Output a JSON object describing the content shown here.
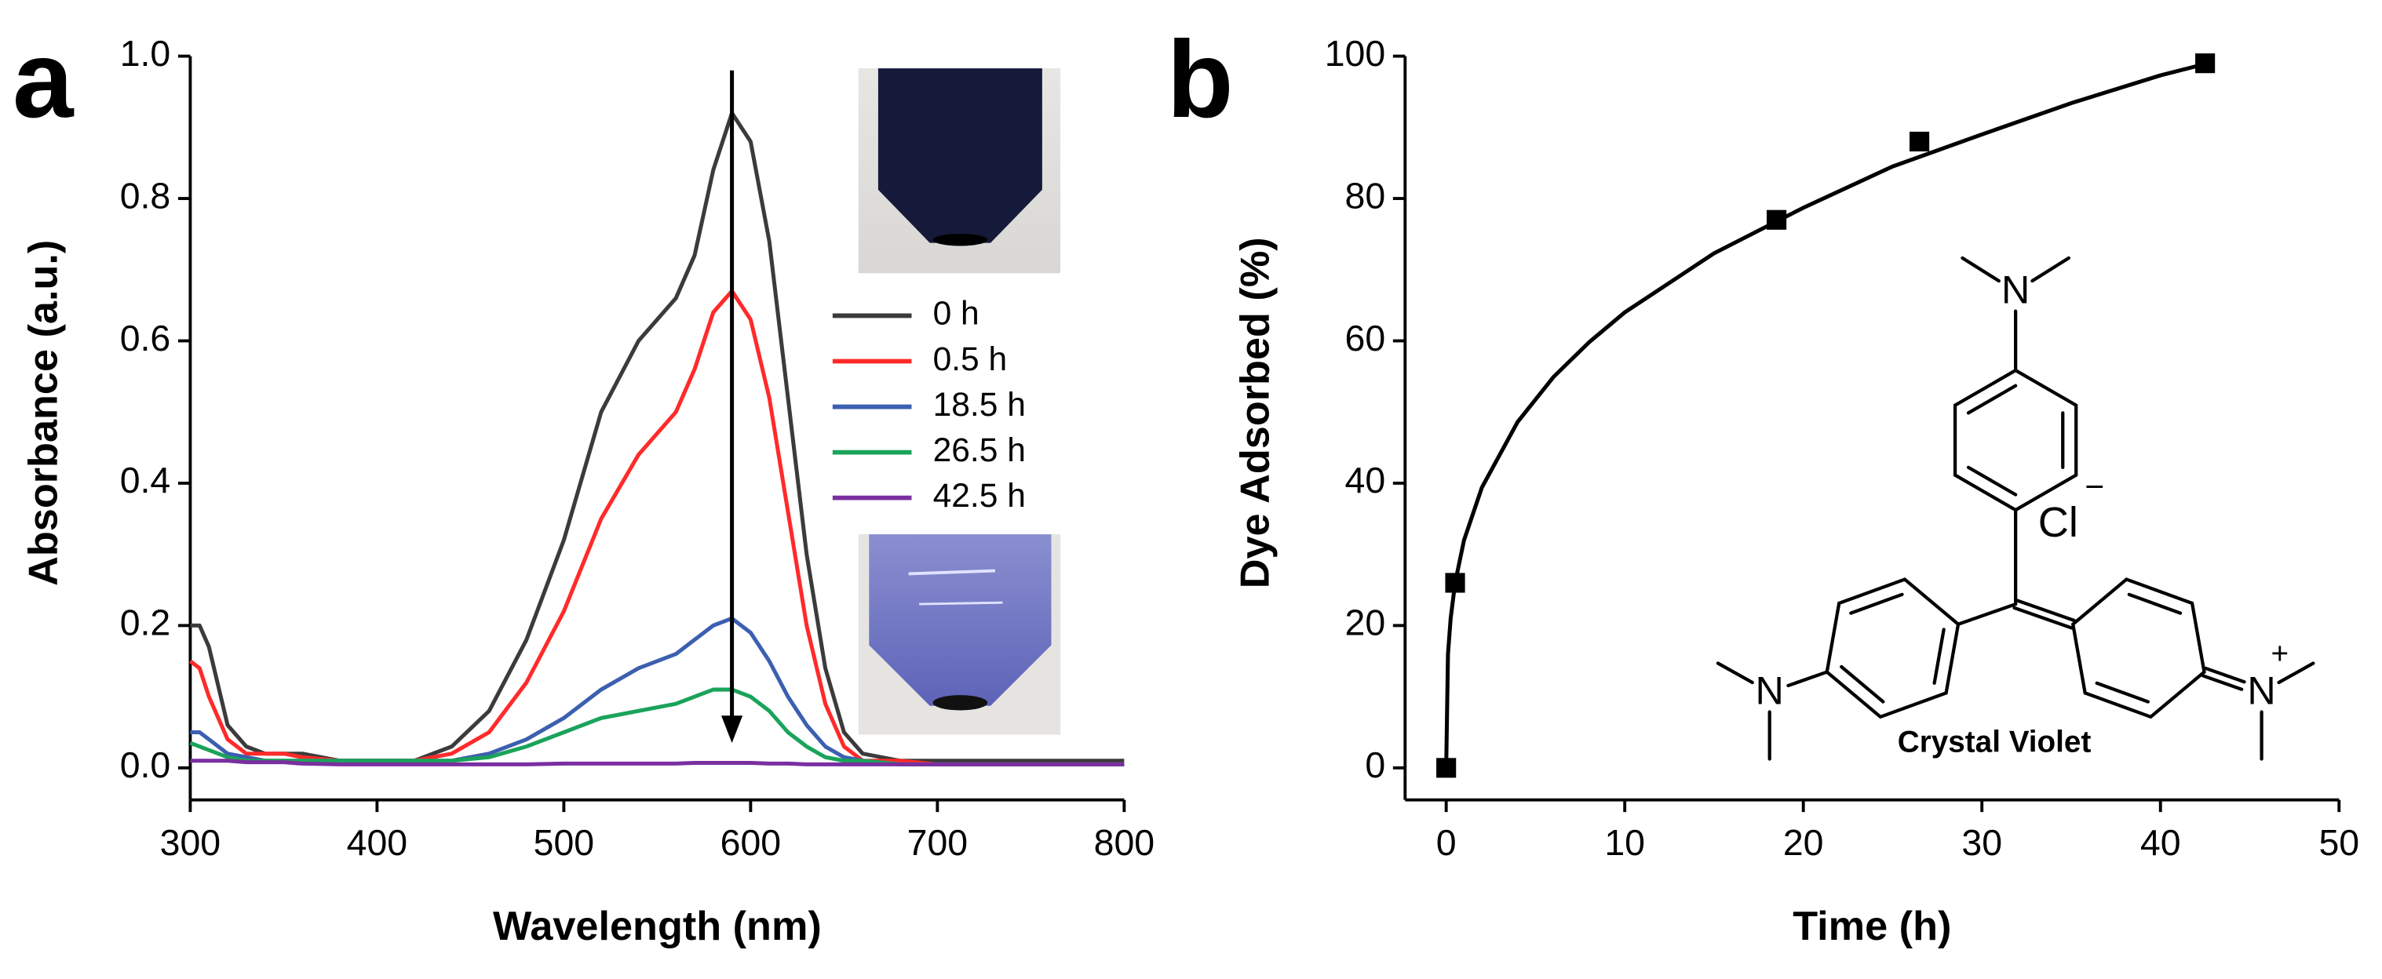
{
  "chart_data": [
    {
      "type": "line",
      "panel_label": "a",
      "xlabel": "Wavelength (nm)",
      "ylabel": "Absorbance (a.u.)",
      "xlim": [
        300,
        800
      ],
      "xticks": [
        300,
        400,
        500,
        600,
        700,
        800
      ],
      "ylim": [
        -0.045,
        1.0
      ],
      "yticks": [
        {
          "value": 0,
          "label": "0.0"
        },
        0.2,
        0.4,
        0.6,
        0.8,
        {
          "value": 1,
          "label": "1.0"
        }
      ],
      "legend": "right",
      "x": [
        300,
        305,
        310,
        320,
        330,
        340,
        350,
        360,
        380,
        400,
        420,
        440,
        460,
        480,
        500,
        520,
        540,
        560,
        570,
        580,
        590,
        600,
        610,
        620,
        630,
        640,
        650,
        660,
        680,
        700,
        750,
        800
      ],
      "series": [
        {
          "name": "0 h",
          "color": "#3b3b3b",
          "values": [
            0.2,
            0.2,
            0.17,
            0.06,
            0.03,
            0.02,
            0.02,
            0.02,
            0.01,
            0.01,
            0.01,
            0.03,
            0.08,
            0.18,
            0.32,
            0.5,
            0.6,
            0.66,
            0.72,
            0.84,
            0.92,
            0.88,
            0.74,
            0.52,
            0.3,
            0.14,
            0.05,
            0.02,
            0.01,
            0.01,
            0.01,
            0.01
          ]
        },
        {
          "name": "0.5 h",
          "color": "#ff2a2a",
          "values": [
            0.15,
            0.14,
            0.1,
            0.04,
            0.02,
            0.02,
            0.02,
            0.015,
            0.01,
            0.01,
            0.01,
            0.02,
            0.05,
            0.12,
            0.22,
            0.35,
            0.44,
            0.5,
            0.56,
            0.64,
            0.67,
            0.63,
            0.52,
            0.36,
            0.2,
            0.09,
            0.03,
            0.01,
            0.01,
            0.005,
            0.005,
            0.005
          ]
        },
        {
          "name": "18.5 h",
          "color": "#3c5fb0",
          "values": [
            0.05,
            0.05,
            0.04,
            0.02,
            0.015,
            0.01,
            0.01,
            0.01,
            0.01,
            0.01,
            0.01,
            0.01,
            0.02,
            0.04,
            0.07,
            0.11,
            0.14,
            0.16,
            0.18,
            0.2,
            0.21,
            0.19,
            0.15,
            0.1,
            0.06,
            0.03,
            0.015,
            0.01,
            0.005,
            0.005,
            0.005,
            0.005
          ]
        },
        {
          "name": "26.5 h",
          "color": "#1aa35a",
          "values": [
            0.035,
            0.03,
            0.025,
            0.015,
            0.01,
            0.01,
            0.01,
            0.01,
            0.01,
            0.01,
            0.01,
            0.01,
            0.015,
            0.03,
            0.05,
            0.07,
            0.08,
            0.09,
            0.1,
            0.11,
            0.11,
            0.1,
            0.08,
            0.05,
            0.03,
            0.015,
            0.01,
            0.01,
            0.005,
            0.005,
            0.005,
            0.005
          ]
        },
        {
          "name": "42.5 h",
          "color": "#7a2fa0",
          "values": [
            0.01,
            0.01,
            0.01,
            0.01,
            0.008,
            0.008,
            0.008,
            0.006,
            0.005,
            0.005,
            0.005,
            0.005,
            0.005,
            0.005,
            0.006,
            0.006,
            0.006,
            0.006,
            0.007,
            0.007,
            0.007,
            0.007,
            0.006,
            0.006,
            0.005,
            0.005,
            0.005,
            0.005,
            0.005,
            0.005,
            0.005,
            0.005
          ]
        }
      ],
      "arrow": {
        "x": 590,
        "y": [
          0.98,
          0.035
        ]
      }
    },
    {
      "type": "scatter",
      "panel_label": "b",
      "xlabel": "Time (h)",
      "ylabel": "Dye Adsorbed (%)",
      "xlim": [
        -2.3,
        50
      ],
      "xticks": [
        0,
        10,
        20,
        30,
        40,
        50
      ],
      "ylim": [
        -4.5,
        100
      ],
      "yticks": [
        0,
        20,
        40,
        60,
        80,
        100
      ],
      "color": "#000000",
      "x": [
        0,
        0.5,
        18.5,
        26.5,
        42.5
      ],
      "values": [
        0,
        26,
        77,
        88,
        99
      ],
      "fit": {
        "x": [
          0,
          0.1,
          0.25,
          0.5,
          1,
          2,
          4,
          6,
          8,
          10,
          15,
          20,
          25,
          30,
          35,
          40,
          42.5
        ],
        "values": [
          0,
          16,
          21,
          26,
          32,
          39.4,
          48.6,
          54.9,
          59.8,
          64,
          72.3,
          78.7,
          84.5,
          89,
          93.4,
          97.3,
          98.9
        ]
      },
      "structure": {
        "atoms": [
          "N",
          "N",
          "N"
        ],
        "anion": "Cl",
        "anion_charge": "−",
        "cation_charge": "+",
        "name": "Crystal Violet"
      }
    }
  ]
}
